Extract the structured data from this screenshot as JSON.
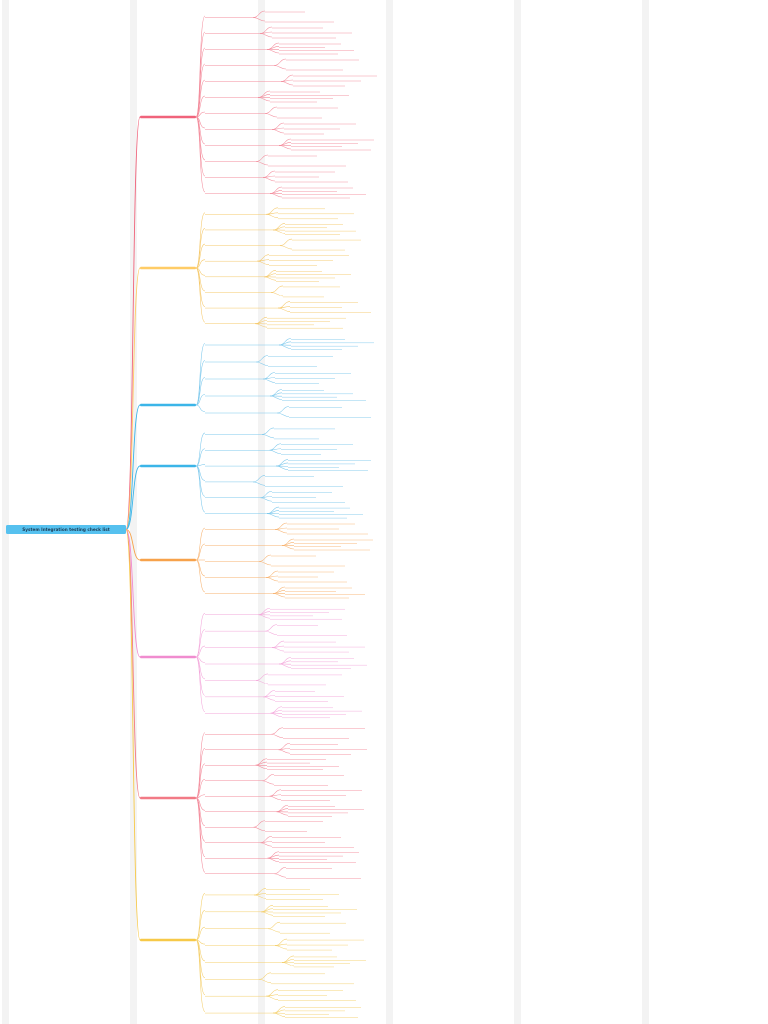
{
  "diagram": {
    "type": "mind-map",
    "root": {
      "label": "System Integration testing check list"
    },
    "colors": {
      "background": "#ffffff",
      "stripe": "#f3f3f3",
      "root": "#56c1ef",
      "branch_red": "#f0637b",
      "branch_yellow": "#ffcc66",
      "branch_blue": "#3bb5e8",
      "branch_orange": "#f7a24b",
      "branch_pink": "#f08ccf",
      "branch_red2": "#f27a86",
      "branch_gold": "#f7c948",
      "line_red": "#f38b9b",
      "line_yellow": "#f5c869",
      "line_blue": "#7cc8ec",
      "line_orange": "#f7b26f",
      "line_pink": "#f3a6da",
      "line_gold": "#f4cf6b",
      "text": "#666666"
    },
    "branches": [
      {
        "name": "branch-1",
        "color": "branch_red",
        "line": "line_red",
        "label": ""
      },
      {
        "name": "branch-2",
        "color": "branch_yellow",
        "line": "line_yellow",
        "label": ""
      },
      {
        "name": "branch-3",
        "color": "branch_blue",
        "line": "line_blue",
        "label": ""
      },
      {
        "name": "branch-4",
        "color": "branch_blue",
        "line": "line_blue",
        "label": ""
      },
      {
        "name": "branch-5",
        "color": "branch_orange",
        "line": "line_orange",
        "label": ""
      },
      {
        "name": "branch-6",
        "color": "branch_pink",
        "line": "line_pink",
        "label": ""
      },
      {
        "name": "branch-7",
        "color": "branch_red2",
        "line": "line_red",
        "label": ""
      },
      {
        "name": "branch-8",
        "color": "branch_gold",
        "line": "line_gold",
        "label": ""
      }
    ]
  }
}
